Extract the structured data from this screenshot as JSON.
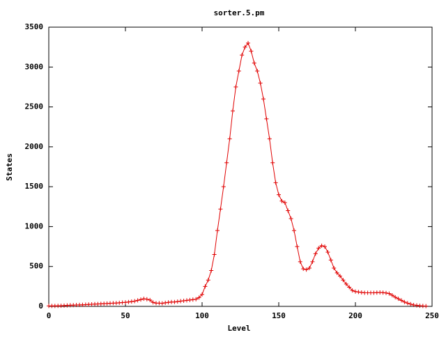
{
  "chart_data": {
    "type": "line",
    "title": "sorter.5.pm",
    "x_label": "Level",
    "y_label": "States",
    "color": "#e00000",
    "markers": true,
    "grid": false,
    "xlim": [
      0,
      250
    ],
    "xticks": [
      0,
      50,
      100,
      150,
      200,
      250
    ],
    "ylim": [
      0,
      3500
    ],
    "yticks": [
      0,
      500,
      1000,
      1500,
      2000,
      2500,
      3000,
      3500
    ],
    "x": [
      0,
      2,
      4,
      6,
      8,
      10,
      12,
      14,
      16,
      18,
      20,
      22,
      24,
      26,
      28,
      30,
      32,
      34,
      36,
      38,
      40,
      42,
      44,
      46,
      48,
      50,
      52,
      54,
      56,
      58,
      60,
      62,
      64,
      66,
      68,
      70,
      72,
      74,
      76,
      78,
      80,
      82,
      84,
      86,
      88,
      90,
      92,
      94,
      96,
      98,
      100,
      102,
      104,
      106,
      108,
      110,
      112,
      114,
      116,
      118,
      120,
      122,
      124,
      126,
      128,
      130,
      132,
      134,
      136,
      138,
      140,
      142,
      144,
      146,
      148,
      150,
      152,
      154,
      156,
      158,
      160,
      162,
      164,
      166,
      168,
      170,
      172,
      174,
      176,
      178,
      180,
      182,
      184,
      186,
      188,
      190,
      192,
      194,
      196,
      198,
      200,
      202,
      204,
      206,
      208,
      210,
      212,
      214,
      216,
      218,
      220,
      222,
      224,
      226,
      228,
      230,
      232,
      234,
      236,
      238,
      240,
      242,
      244,
      246
    ],
    "values": [
      5,
      5,
      6,
      7,
      8,
      10,
      12,
      14,
      15,
      17,
      19,
      20,
      22,
      24,
      26,
      28,
      30,
      32,
      34,
      36,
      38,
      40,
      42,
      45,
      48,
      50,
      55,
      60,
      65,
      75,
      85,
      95,
      90,
      80,
      50,
      40,
      40,
      38,
      45,
      50,
      55,
      55,
      60,
      65,
      70,
      75,
      80,
      85,
      90,
      110,
      150,
      250,
      330,
      450,
      650,
      950,
      1220,
      1500,
      1800,
      2100,
      2450,
      2750,
      2950,
      3150,
      3250,
      3300,
      3200,
      3050,
      2950,
      2800,
      2600,
      2350,
      2100,
      1800,
      1550,
      1400,
      1320,
      1300,
      1200,
      1100,
      950,
      750,
      560,
      470,
      460,
      480,
      560,
      660,
      730,
      760,
      750,
      680,
      580,
      480,
      420,
      380,
      330,
      280,
      240,
      200,
      185,
      180,
      175,
      170,
      170,
      170,
      170,
      172,
      175,
      172,
      168,
      160,
      140,
      115,
      95,
      75,
      55,
      40,
      28,
      18,
      12,
      8,
      5,
      3
    ]
  }
}
